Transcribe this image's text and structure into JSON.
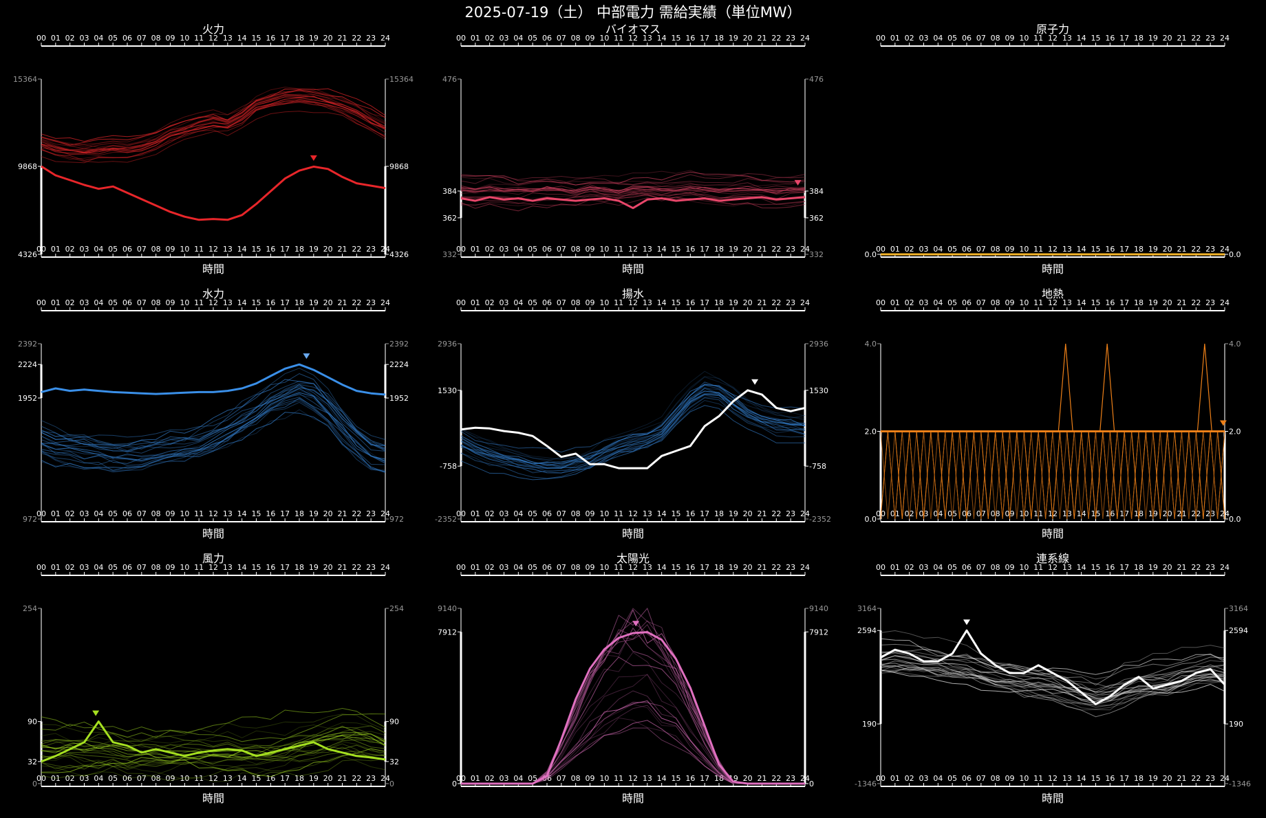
{
  "title": "2025-07-19（土） 中部電力 需給実績（単位MW）",
  "hours": [
    "00",
    "01",
    "02",
    "03",
    "04",
    "05",
    "06",
    "07",
    "08",
    "09",
    "10",
    "11",
    "12",
    "13",
    "14",
    "15",
    "16",
    "17",
    "18",
    "19",
    "20",
    "21",
    "22",
    "23",
    "24"
  ],
  "xlabel": "時間",
  "chart_data": [
    {
      "type": "line",
      "title": "火力",
      "color": "#e8262a",
      "ylim": [
        4326,
        15364
      ],
      "ticks": [
        {
          "v": 4326,
          "label": "4326",
          "major": true
        },
        {
          "v": 9868,
          "label": "9868",
          "major": true
        },
        {
          "v": 15364,
          "label": "15364",
          "major": false
        }
      ],
      "peak": {
        "x": 19,
        "y": 9868
      },
      "series": [
        {
          "values": [
            9868,
            9300,
            9000,
            8700,
            8450,
            8600,
            8200,
            7800,
            7400,
            7000,
            6700,
            6500,
            6550,
            6500,
            6800,
            7500,
            8300,
            9100,
            9600,
            9850,
            9700,
            9200,
            8800,
            8650,
            8500
          ]
        }
      ],
      "bg": {
        "base": [
          11300,
          11000,
          10850,
          10800,
          10900,
          11000,
          10900,
          11100,
          11400,
          11900,
          12200,
          12500,
          12700,
          12500,
          13000,
          13700,
          14000,
          14200,
          14300,
          14200,
          14000,
          13700,
          13300,
          12800,
          12300
        ],
        "spread": 1900,
        "count": 20,
        "seed": 11
      }
    },
    {
      "type": "line",
      "title": "バイオマス",
      "color": "#e8466a",
      "ylim": [
        332,
        476
      ],
      "ticks": [
        {
          "v": 332,
          "label": "332",
          "major": false
        },
        {
          "v": 362,
          "label": "362",
          "major": true
        },
        {
          "v": 384,
          "label": "384",
          "major": true
        },
        {
          "v": 476,
          "label": "476",
          "major": false
        }
      ],
      "peak": {
        "x": 23.5,
        "y": 384
      },
      "series": [
        {
          "values": [
            378,
            376,
            379,
            377,
            378,
            376,
            378,
            377,
            376,
            377,
            378,
            376,
            370,
            377,
            378,
            376,
            377,
            378,
            376,
            377,
            378,
            379,
            377,
            378,
            379
          ]
        }
      ],
      "bg": {
        "base": [
          385,
          384,
          386,
          385,
          384,
          385,
          386,
          385,
          384,
          386,
          385,
          384,
          385,
          386,
          384,
          385,
          386,
          385,
          384,
          385,
          386,
          385,
          384,
          385,
          386
        ],
        "spread": 30,
        "count": 22,
        "seed": 23
      }
    },
    {
      "type": "line",
      "title": "原子力",
      "color": "#f4b429",
      "ylim": [
        0,
        4
      ],
      "ticks": [
        {
          "v": 0,
          "label": "0.0",
          "major": true
        }
      ],
      "peak": null,
      "series": [
        {
          "values": [
            0,
            0,
            0,
            0,
            0,
            0,
            0,
            0,
            0,
            0,
            0,
            0,
            0,
            0,
            0,
            0,
            0,
            0,
            0,
            0,
            0,
            0,
            0,
            0,
            0
          ]
        }
      ],
      "bg": null
    },
    {
      "type": "line",
      "title": "水力",
      "color": "#3a8fe8",
      "ylim": [
        972,
        2392
      ],
      "ticks": [
        {
          "v": 972,
          "label": "972",
          "major": false
        },
        {
          "v": 1952,
          "label": "1952",
          "major": true
        },
        {
          "v": 2224,
          "label": "2224",
          "major": true
        },
        {
          "v": 2392,
          "label": "2392",
          "major": false
        }
      ],
      "peak": {
        "x": 18.5,
        "y": 2224
      },
      "series": [
        {
          "values": [
            2000,
            2030,
            2010,
            2020,
            2010,
            2000,
            1995,
            1990,
            1985,
            1990,
            1995,
            2000,
            2000,
            2010,
            2030,
            2070,
            2130,
            2190,
            2224,
            2180,
            2120,
            2060,
            2010,
            1990,
            1980
          ]
        }
      ],
      "bg": {
        "base": [
          1600,
          1560,
          1540,
          1520,
          1500,
          1480,
          1470,
          1480,
          1500,
          1520,
          1530,
          1560,
          1600,
          1660,
          1740,
          1820,
          1900,
          1960,
          2000,
          1960,
          1860,
          1720,
          1600,
          1500,
          1460
        ],
        "spread": 440,
        "count": 22,
        "seed": 37
      }
    },
    {
      "type": "line",
      "title": "揚水",
      "color": "#3a8fe8",
      "ylim": [
        -2352,
        2936
      ],
      "ticks": [
        {
          "v": -2352,
          "label": "-2352",
          "major": false
        },
        {
          "v": -758,
          "label": "-758",
          "major": true
        },
        {
          "v": 1530,
          "label": "1530",
          "major": true
        },
        {
          "v": 2936,
          "label": "2936",
          "major": false
        }
      ],
      "peak": {
        "x": 20.5,
        "y": 1530
      },
      "series": [
        {
          "name": "",
          "values": [
            350,
            400,
            380,
            300,
            250,
            150,
            -150,
            -480,
            -380,
            -700,
            -700,
            -820,
            -820,
            -820,
            -450,
            -300,
            -150,
            450,
            750,
            1200,
            1530,
            1400,
            1000,
            900,
            1000
          ]
        }
      ],
      "bg": {
        "base": [
          -100,
          -300,
          -450,
          -550,
          -650,
          -750,
          -800,
          -800,
          -700,
          -600,
          -400,
          -200,
          -100,
          0,
          200,
          700,
          1200,
          1500,
          1400,
          1100,
          800,
          600,
          500,
          450,
          400
        ],
        "spread": 1200,
        "count": 22,
        "seed": 53
      }
    },
    {
      "type": "line",
      "title": "地熱",
      "color": "#ee8018",
      "ylim": [
        0,
        4
      ],
      "ticks": [
        {
          "v": 0,
          "label": "0.0",
          "major": true
        },
        {
          "v": 2,
          "label": "2.0",
          "major": true
        },
        {
          "v": 4,
          "label": "4.0",
          "major": false
        }
      ],
      "peak": {
        "x": 23.9,
        "y": 2
      },
      "series": [
        {
          "values": [
            2,
            2,
            2,
            2,
            2,
            2,
            2,
            2,
            2,
            2,
            2,
            2,
            2,
            2,
            2,
            2,
            2,
            2,
            2,
            2,
            2,
            2,
            2,
            2,
            2
          ]
        }
      ],
      "bg": {
        "zigzag": true,
        "spikes": [
          12.9,
          15.8,
          22.6
        ],
        "count": 10,
        "seed": 71
      }
    },
    {
      "type": "line",
      "title": "風力",
      "color": "#a5e020",
      "ylim": [
        0,
        254
      ],
      "ticks": [
        {
          "v": 0,
          "label": "0",
          "major": false
        },
        {
          "v": 32,
          "label": "32",
          "major": true
        },
        {
          "v": 90,
          "label": "90",
          "major": true
        },
        {
          "v": 254,
          "label": "254",
          "major": false
        }
      ],
      "peak": {
        "x": 3.8,
        "y": 90
      },
      "series": [
        {
          "values": [
            32,
            40,
            50,
            60,
            90,
            60,
            55,
            45,
            50,
            45,
            40,
            45,
            48,
            50,
            48,
            40,
            45,
            50,
            55,
            60,
            50,
            45,
            40,
            38,
            35
          ]
        }
      ],
      "bg": {
        "base": [
          55,
          55,
          55,
          55,
          55,
          55,
          50,
          50,
          50,
          50,
          50,
          50,
          50,
          50,
          50,
          50,
          50,
          55,
          60,
          65,
          70,
          75,
          75,
          70,
          65
        ],
        "spread": 95,
        "count": 24,
        "seed": 89
      }
    },
    {
      "type": "line",
      "title": "太陽光",
      "color": "#e070c0",
      "ylim": [
        0,
        9140
      ],
      "ticks": [
        {
          "v": 0,
          "label": "0",
          "major": true
        },
        {
          "v": 7912,
          "label": "7912",
          "major": true
        },
        {
          "v": 9140,
          "label": "9140",
          "major": false
        }
      ],
      "peak": {
        "x": 12.2,
        "y": 7912
      },
      "series": [
        {
          "values": [
            0,
            0,
            0,
            0,
            0,
            0,
            400,
            2300,
            4400,
            6000,
            7000,
            7600,
            7850,
            7900,
            7500,
            6500,
            5000,
            3000,
            1000,
            100,
            0,
            0,
            0,
            0,
            0
          ]
        }
      ],
      "bg": {
        "solar": true,
        "count": 22,
        "seed": 97
      }
    },
    {
      "type": "line",
      "title": "連系線",
      "color": "#ffffff",
      "ylim": [
        -1346,
        3164
      ],
      "ticks": [
        {
          "v": -1346,
          "label": "-1346",
          "major": false
        },
        {
          "v": 190,
          "label": "190",
          "major": true
        },
        {
          "v": 2594,
          "label": "2594",
          "major": true
        },
        {
          "v": 3164,
          "label": "3164",
          "major": false
        }
      ],
      "peak": {
        "x": 6,
        "y": 2594
      },
      "series": [
        {
          "values": [
            1900,
            2100,
            2000,
            1800,
            1800,
            2000,
            2594,
            2000,
            1700,
            1500,
            1500,
            1700,
            1500,
            1300,
            1000,
            700,
            900,
            1200,
            1400,
            1100,
            1200,
            1300,
            1500,
            1600,
            1200
          ]
        }
      ],
      "bg": {
        "base": [
          1900,
          1950,
          1900,
          1850,
          1800,
          1750,
          1700,
          1600,
          1500,
          1450,
          1400,
          1350,
          1300,
          1200,
          1100,
          1000,
          1050,
          1200,
          1300,
          1350,
          1400,
          1500,
          1600,
          1650,
          1600
        ],
        "spread": 1300,
        "count": 24,
        "seed": 113
      }
    }
  ]
}
